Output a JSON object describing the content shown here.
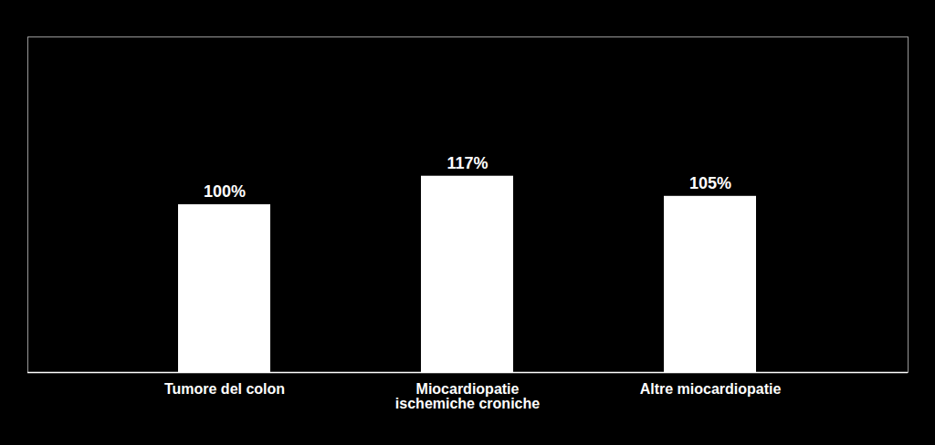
{
  "chart_data": {
    "type": "bar",
    "categories": [
      "Tumore del colon",
      "Miocardiopatie\nischemiche croniche",
      "Altre miocardiopatie"
    ],
    "values": [
      100,
      117,
      105
    ],
    "value_labels": [
      "100%",
      "117%",
      "105%"
    ],
    "data_labels": true,
    "color": "#ffffff",
    "ylim": [
      0,
      200
    ],
    "tick_labels": "x"
  }
}
